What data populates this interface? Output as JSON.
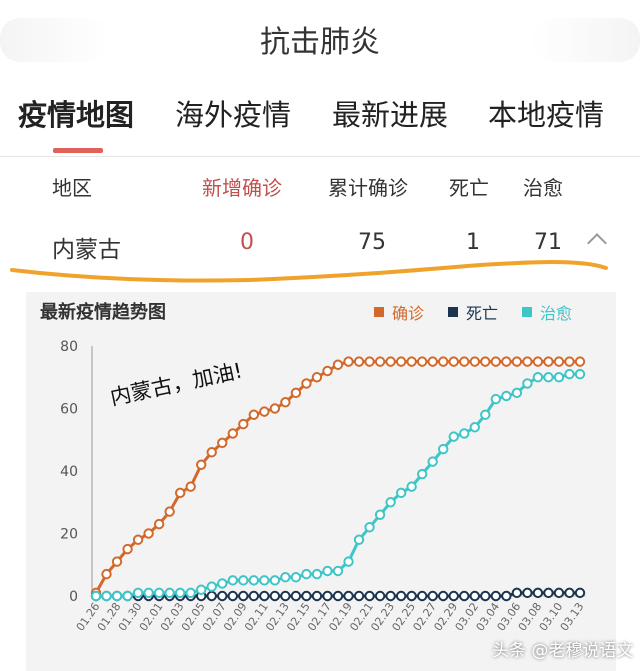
{
  "header": {
    "title": "抗击肺炎"
  },
  "tabs": [
    {
      "label": "疫情地图",
      "active": true
    },
    {
      "label": "海外疫情"
    },
    {
      "label": "最新进展"
    },
    {
      "label": "本地疫情"
    }
  ],
  "table": {
    "columns": [
      "地区",
      "新增确诊",
      "累计确诊",
      "死亡",
      "治愈"
    ],
    "row": {
      "region": "内蒙古",
      "new_confirmed": "0",
      "total_confirmed": "75",
      "deaths": "1",
      "cured": "71"
    }
  },
  "colors": {
    "confirmed": "#d2692b",
    "deaths": "#1b3550",
    "cured": "#3ec5c8",
    "highlight": "#f0a32a",
    "tab_active": "#e0605a"
  },
  "chart_data": {
    "type": "line",
    "title": "最新疫情趋势图",
    "x": [
      "01.26",
      "01.27",
      "01.28",
      "01.29",
      "01.30",
      "01.31",
      "02.01",
      "02.02",
      "02.03",
      "02.04",
      "02.05",
      "02.06",
      "02.07",
      "02.08",
      "02.09",
      "02.10",
      "02.11",
      "02.12",
      "02.13",
      "02.14",
      "02.15",
      "02.16",
      "02.17",
      "02.18",
      "02.19",
      "02.20",
      "02.21",
      "02.22",
      "02.23",
      "02.24",
      "02.25",
      "02.26",
      "02.27",
      "02.28",
      "02.29",
      "03.01",
      "03.02",
      "03.03",
      "03.04",
      "03.05",
      "03.06",
      "03.07",
      "03.08",
      "03.09",
      "03.10",
      "03.11",
      "03.13"
    ],
    "x_tick_labels": [
      "01.26",
      "01.28",
      "01.30",
      "02.01",
      "02.03",
      "02.05",
      "02.07",
      "02.09",
      "02.11",
      "02.13",
      "02.15",
      "02.17",
      "02.19",
      "02.21",
      "02.23",
      "02.25",
      "02.27",
      "02.29",
      "03.02",
      "03.04",
      "03.06",
      "03.08",
      "03.10",
      "03.13"
    ],
    "series": [
      {
        "name": "确诊",
        "color": "#d2692b",
        "values": [
          1,
          7,
          11,
          15,
          18,
          20,
          23,
          27,
          33,
          35,
          42,
          46,
          49,
          52,
          55,
          58,
          59,
          60,
          62,
          65,
          68,
          70,
          72,
          74,
          75,
          75,
          75,
          75,
          75,
          75,
          75,
          75,
          75,
          75,
          75,
          75,
          75,
          75,
          75,
          75,
          75,
          75,
          75,
          75,
          75,
          75,
          75
        ]
      },
      {
        "name": "死亡",
        "color": "#1b3550",
        "values": [
          0,
          0,
          0,
          0,
          0,
          0,
          0,
          0,
          0,
          0,
          0,
          0,
          0,
          0,
          0,
          0,
          0,
          0,
          0,
          0,
          0,
          0,
          0,
          0,
          0,
          0,
          0,
          0,
          0,
          0,
          0,
          0,
          0,
          0,
          0,
          0,
          0,
          0,
          0,
          0,
          1,
          1,
          1,
          1,
          1,
          1,
          1
        ]
      },
      {
        "name": "治愈",
        "color": "#3ec5c8",
        "values": [
          0,
          0,
          0,
          0,
          1,
          1,
          1,
          1,
          1,
          1,
          2,
          3,
          4,
          5,
          5,
          5,
          5,
          5,
          6,
          6,
          7,
          7,
          8,
          8,
          11,
          18,
          22,
          26,
          30,
          33,
          35,
          39,
          43,
          47,
          51,
          52,
          54,
          58,
          63,
          64,
          65,
          68,
          70,
          70,
          70,
          71,
          71
        ]
      }
    ],
    "ylim": [
      0,
      80
    ],
    "yticks": [
      0,
      20,
      40,
      60,
      80
    ],
    "legend_position": "top-right",
    "annotation": "内蒙古，加油!"
  },
  "watermark": "头条 @老穆说语文"
}
